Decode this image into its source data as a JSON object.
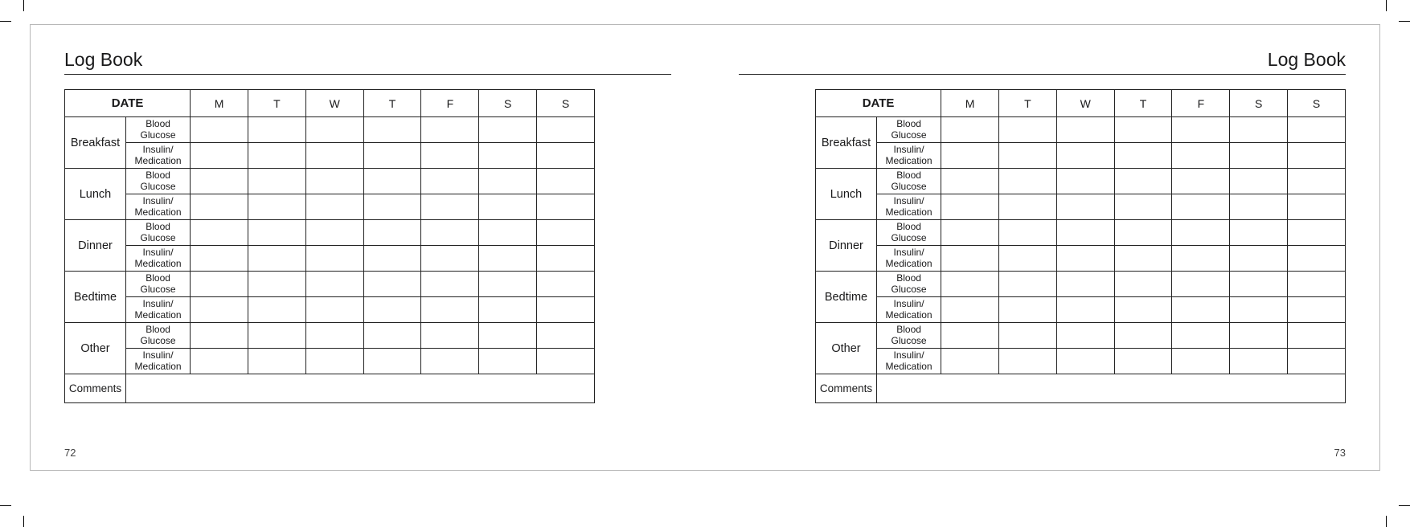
{
  "title": "Log Book",
  "date_label": "DATE",
  "days": [
    "M",
    "T",
    "W",
    "T",
    "F",
    "S",
    "S"
  ],
  "times": [
    "Breakfast",
    "Lunch",
    "Dinner",
    "Bedtime",
    "Other"
  ],
  "metrics": {
    "glucose": {
      "l1": "Blood",
      "l2": "Glucose"
    },
    "insulin": {
      "l1": "Insulin/",
      "l2": "Medication"
    }
  },
  "comments_label": "Comments",
  "pages": {
    "left": {
      "number": "72"
    },
    "right": {
      "number": "73"
    }
  },
  "style": {
    "border_color": "#222222",
    "outer_border_color": "#b8b8b8",
    "text_color": "#19191a",
    "background": "#ffffff"
  }
}
